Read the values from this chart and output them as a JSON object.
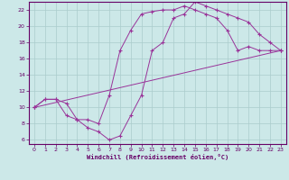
{
  "background_color": "#cce8e8",
  "grid_color": "#aacccc",
  "line_color": "#993399",
  "spine_color": "#660066",
  "xlim": [
    -0.5,
    23.5
  ],
  "ylim": [
    5.5,
    23.0
  ],
  "xticks": [
    0,
    1,
    2,
    3,
    4,
    5,
    6,
    7,
    8,
    9,
    10,
    11,
    12,
    13,
    14,
    15,
    16,
    17,
    18,
    19,
    20,
    21,
    22,
    23
  ],
  "yticks": [
    6,
    8,
    10,
    12,
    14,
    16,
    18,
    20,
    22
  ],
  "xlabel": "Windchill (Refroidissement éolien,°C)",
  "line1_x": [
    0,
    1,
    2,
    3,
    4,
    5,
    6,
    7,
    8,
    9,
    10,
    11,
    12,
    13,
    14,
    15,
    16,
    17,
    18,
    19,
    20,
    21,
    22,
    23
  ],
  "line1_y": [
    10,
    11,
    11,
    10.5,
    8.5,
    7.5,
    7,
    6,
    6.5,
    9,
    11.5,
    17,
    18,
    21,
    21.5,
    23,
    22.5,
    22,
    21.5,
    21,
    20.5,
    19,
    18,
    17
  ],
  "line2_x": [
    0,
    1,
    2,
    3,
    4,
    5,
    6,
    7,
    8,
    9,
    10,
    11,
    12,
    13,
    14,
    15,
    16,
    17,
    18,
    19,
    20,
    21,
    22,
    23
  ],
  "line2_y": [
    10,
    11,
    11,
    9,
    8.5,
    8.5,
    8,
    11.5,
    17,
    19.5,
    21.5,
    21.8,
    22,
    22,
    22.5,
    22,
    21.5,
    21,
    19.5,
    17,
    17.5,
    17,
    17,
    17
  ],
  "line3_x": [
    0,
    23
  ],
  "line3_y": [
    10,
    17
  ]
}
